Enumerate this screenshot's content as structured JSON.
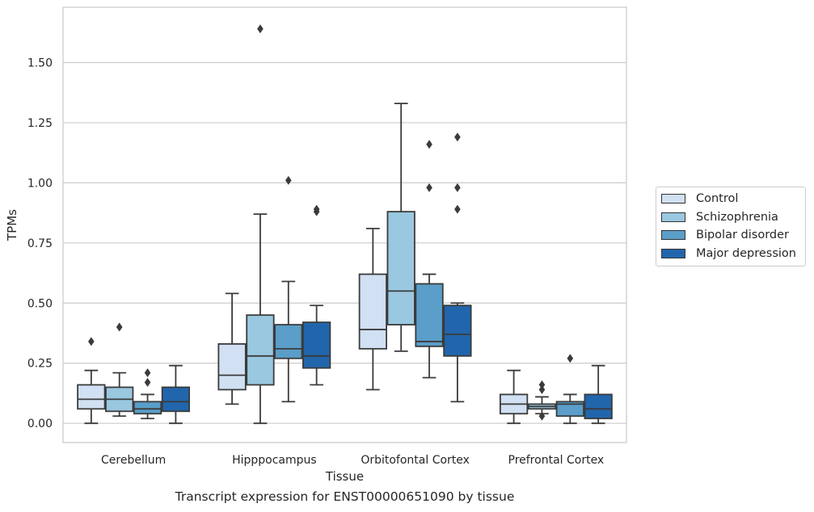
{
  "chart_data": {
    "type": "box",
    "xlabel": "Tissue",
    "ylabel": "TPMs",
    "ylim": [
      -0.08,
      1.73
    ],
    "yticks": [
      "0.00",
      "0.25",
      "0.50",
      "0.75",
      "1.00",
      "1.25",
      "1.50"
    ],
    "ytick_values": [
      0,
      0.25,
      0.5,
      0.75,
      1.0,
      1.25,
      1.5
    ],
    "grid": "horizontal",
    "legend_position": "right",
    "categories": [
      "Cerebellum",
      "Hipppocampus",
      "Orbitofontal Cortex",
      "Prefrontal Cortex"
    ],
    "series": [
      {
        "name": "Control",
        "color": "#d1e0f2",
        "boxes": [
          {
            "whislo": 0.0,
            "q1": 0.06,
            "med": 0.1,
            "q3": 0.16,
            "whishi": 0.22,
            "fliers": [
              0.34
            ]
          },
          {
            "whislo": 0.08,
            "q1": 0.14,
            "med": 0.2,
            "q3": 0.33,
            "whishi": 0.54,
            "fliers": []
          },
          {
            "whislo": 0.14,
            "q1": 0.31,
            "med": 0.39,
            "q3": 0.62,
            "whishi": 0.81,
            "fliers": []
          },
          {
            "whislo": 0.0,
            "q1": 0.04,
            "med": 0.08,
            "q3": 0.12,
            "whishi": 0.22,
            "fliers": []
          }
        ]
      },
      {
        "name": "Schizophrenia",
        "color": "#9ac8e0",
        "boxes": [
          {
            "whislo": 0.03,
            "q1": 0.05,
            "med": 0.1,
            "q3": 0.15,
            "whishi": 0.21,
            "fliers": [
              0.4
            ]
          },
          {
            "whislo": 0.0,
            "q1": 0.16,
            "med": 0.28,
            "q3": 0.45,
            "whishi": 0.87,
            "fliers": [
              1.64
            ]
          },
          {
            "whislo": 0.3,
            "q1": 0.41,
            "med": 0.55,
            "q3": 0.88,
            "whishi": 1.33,
            "fliers": []
          },
          {
            "whislo": 0.04,
            "q1": 0.06,
            "med": 0.07,
            "q3": 0.08,
            "whishi": 0.11,
            "fliers": [
              0.03,
              0.14,
              0.16
            ]
          }
        ]
      },
      {
        "name": "Bipolar disorder",
        "color": "#5a9ec9",
        "boxes": [
          {
            "whislo": 0.02,
            "q1": 0.04,
            "med": 0.06,
            "q3": 0.09,
            "whishi": 0.12,
            "fliers": [
              0.17,
              0.21
            ]
          },
          {
            "whislo": 0.09,
            "q1": 0.27,
            "med": 0.31,
            "q3": 0.41,
            "whishi": 0.59,
            "fliers": [
              1.01
            ]
          },
          {
            "whislo": 0.19,
            "q1": 0.32,
            "med": 0.34,
            "q3": 0.58,
            "whishi": 0.62,
            "fliers": [
              0.98,
              1.16
            ]
          },
          {
            "whislo": 0.0,
            "q1": 0.03,
            "med": 0.08,
            "q3": 0.09,
            "whishi": 0.12,
            "fliers": [
              0.27
            ]
          }
        ]
      },
      {
        "name": "Major depression",
        "color": "#2166ac",
        "boxes": [
          {
            "whislo": 0.0,
            "q1": 0.05,
            "med": 0.09,
            "q3": 0.15,
            "whishi": 0.24,
            "fliers": []
          },
          {
            "whislo": 0.16,
            "q1": 0.23,
            "med": 0.28,
            "q3": 0.42,
            "whishi": 0.49,
            "fliers": [
              0.88,
              0.89
            ]
          },
          {
            "whislo": 0.09,
            "q1": 0.28,
            "med": 0.37,
            "q3": 0.49,
            "whishi": 0.5,
            "fliers": [
              0.89,
              0.98,
              1.19
            ]
          },
          {
            "whislo": 0.0,
            "q1": 0.02,
            "med": 0.06,
            "q3": 0.12,
            "whishi": 0.24,
            "fliers": []
          }
        ]
      }
    ]
  },
  "caption": "Transcript expression for ENST00000651090 by tissue"
}
